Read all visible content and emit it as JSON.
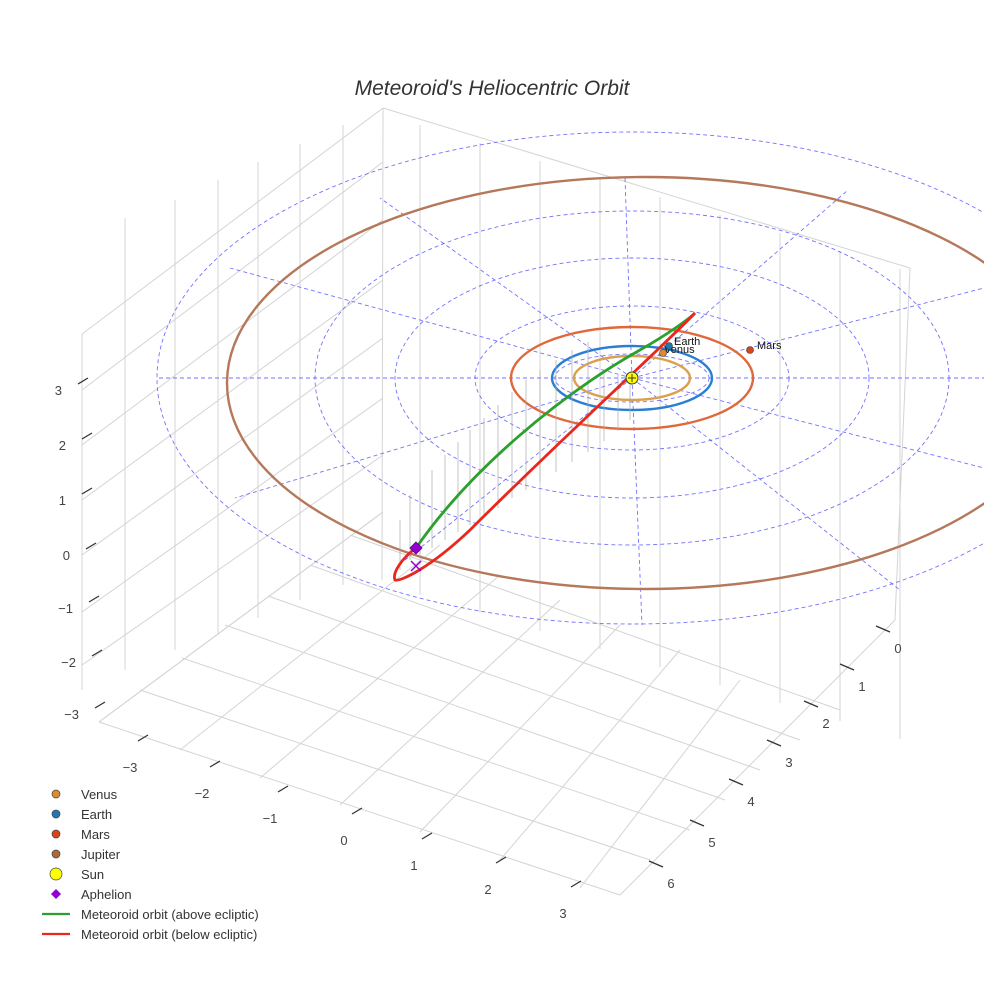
{
  "chart_data": {
    "type": "3d-scatter-line",
    "title": "Meteoroid's Heliocentric Orbit",
    "axes": {
      "z_ticks": [
        "3",
        "2",
        "1",
        "0",
        "−1",
        "−2",
        "−3"
      ],
      "x_ticks": [
        "−3",
        "−2",
        "−1",
        "0",
        "1",
        "2",
        "3"
      ],
      "y_ticks": [
        "0",
        "1",
        "2",
        "3",
        "4",
        "5",
        "6"
      ]
    },
    "planets": [
      {
        "name": "Venus",
        "color": "#e08a2c",
        "orbit_color": "#d9a050",
        "orbit_radius_au": 0.72
      },
      {
        "name": "Earth",
        "color": "#1f77b4",
        "orbit_color": "#2a7fd4",
        "orbit_radius_au": 1.0
      },
      {
        "name": "Mars",
        "color": "#d9451a",
        "orbit_color": "#e0683a",
        "orbit_radius_au": 1.52
      },
      {
        "name": "Jupiter",
        "color": "#b0683a",
        "orbit_color": "#b5785a",
        "orbit_radius_au": 5.2
      }
    ],
    "sun": {
      "name": "Sun",
      "color": "#ffff00"
    },
    "aphelion": {
      "name": "Aphelion",
      "color": "#9400d3"
    },
    "series": [
      {
        "name": "Meteoroid orbit (above ecliptic)",
        "color": "#2ca02c"
      },
      {
        "name": "Meteoroid orbit (below ecliptic)",
        "color": "#e8281e"
      }
    ],
    "grid": "polar-dashed",
    "legend_position": "bottom-left",
    "legend": [
      "Venus",
      "Earth",
      "Mars",
      "Jupiter",
      "Sun",
      "Aphelion",
      "Meteoroid orbit (above ecliptic)",
      "Meteoroid orbit (below ecliptic)"
    ]
  }
}
